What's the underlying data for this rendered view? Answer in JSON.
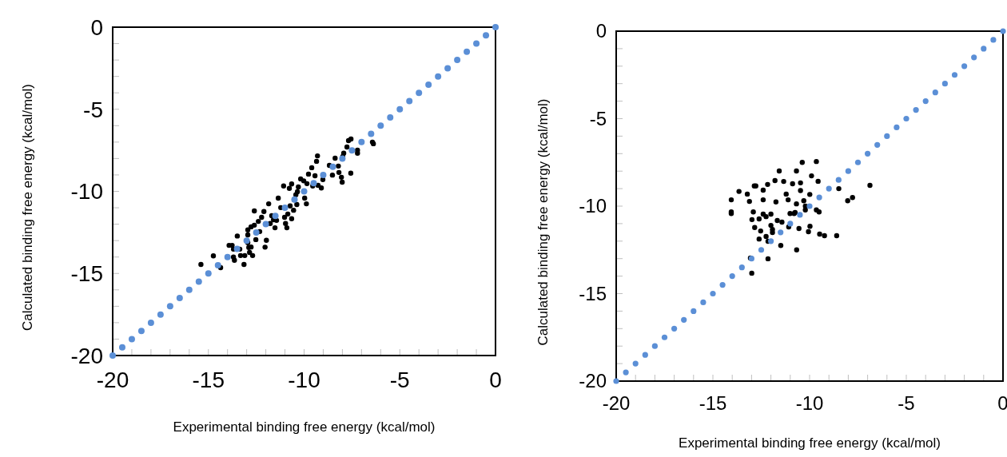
{
  "chart_data": [
    {
      "type": "scatter",
      "xlabel": "Experimental binding free energy (kcal/mol)",
      "ylabel": "Calculated binding free energy (kcal/mol)",
      "xlim": [
        -20,
        0
      ],
      "ylim": [
        -20,
        0
      ],
      "xticks": [
        -20,
        {
          "value": -19,
          "label": null
        },
        {
          "value": -18,
          "label": null
        },
        {
          "value": -17,
          "label": null
        },
        {
          "value": -16,
          "label": null
        },
        -15,
        {
          "value": -14,
          "label": null
        },
        {
          "value": -13,
          "label": null
        },
        {
          "value": -12,
          "label": null
        },
        {
          "value": -11,
          "label": null
        },
        -10,
        {
          "value": -9,
          "label": null
        },
        {
          "value": -8,
          "label": null
        },
        {
          "value": -7,
          "label": null
        },
        {
          "value": -6,
          "label": null
        },
        -5,
        {
          "value": -4,
          "label": null
        },
        {
          "value": -3,
          "label": null
        },
        {
          "value": -2,
          "label": null
        },
        {
          "value": -1,
          "label": null
        },
        0
      ],
      "yticks": [
        -20,
        {
          "value": -19,
          "label": null
        },
        {
          "value": -18,
          "label": null
        },
        {
          "value": -17,
          "label": null
        },
        {
          "value": -16,
          "label": null
        },
        -15,
        {
          "value": -14,
          "label": null
        },
        {
          "value": -13,
          "label": null
        },
        {
          "value": -12,
          "label": null
        },
        {
          "value": -11,
          "label": null
        },
        -10,
        {
          "value": -9,
          "label": null
        },
        {
          "value": -8,
          "label": null
        },
        {
          "value": -7,
          "label": null
        },
        {
          "value": -6,
          "label": null
        },
        -5,
        {
          "value": -4,
          "label": null
        },
        {
          "value": -3,
          "label": null
        },
        {
          "value": -2,
          "label": null
        },
        {
          "value": -1,
          "label": null
        },
        0
      ],
      "grid": false,
      "marker": "circle",
      "series": [
        {
          "color": "#000000",
          "x": [
            -15.39,
            -14.74,
            -14.36,
            -13.92,
            -13.76,
            -13.69,
            -13.69,
            -13.64,
            -13.49,
            -13.36,
            -13.32,
            -13.14,
            -13.1,
            -12.94,
            -12.94,
            -12.94,
            -12.89,
            -12.85,
            -12.77,
            -12.77,
            -12.69,
            -12.6,
            -12.6,
            -12.52,
            -12.39,
            -12.32,
            -12.22,
            -12.1,
            -12.04,
            -11.97,
            -11.85,
            -11.77,
            -11.69,
            -11.6,
            -11.52,
            -11.44,
            -11.35,
            -11.22,
            -11.07,
            -11.02,
            -10.97,
            -10.9,
            -10.85,
            -10.77,
            -10.73,
            -10.65,
            -10.65,
            -10.55,
            -10.52,
            -10.43,
            -10.38,
            -10.35,
            -10.3,
            -10.18,
            -10.02,
            -9.97,
            -9.88,
            -9.85,
            -9.77,
            -9.6,
            -9.55,
            -9.43,
            -9.35,
            -9.3,
            -9.27,
            -9.1,
            -9.02,
            -8.68,
            -8.52,
            -8.38,
            -8.21,
            -8.18,
            -8.05,
            -8.01,
            -7.98,
            -7.93,
            -7.76,
            -7.68,
            -7.55,
            -7.56,
            -7.21,
            -7.21,
            -6.43,
            -6.38
          ],
          "values": [
            -14.45,
            -13.93,
            -14.65,
            -13.29,
            -13.29,
            -13.52,
            -14.0,
            -14.2,
            -12.72,
            -13.52,
            -13.91,
            -14.45,
            -13.91,
            -12.35,
            -12.65,
            -13.13,
            -13.42,
            -13.72,
            -12.16,
            -13.39,
            -13.91,
            -12.06,
            -11.19,
            -12.94,
            -11.83,
            -12.45,
            -11.58,
            -11.23,
            -13.4,
            -12.98,
            -10.76,
            -11.96,
            -11.48,
            -11.73,
            -12.22,
            -11.77,
            -10.41,
            -10.99,
            -9.67,
            -11.58,
            -11.96,
            -12.22,
            -11.38,
            -9.82,
            -10.89,
            -9.55,
            -11.67,
            -11.15,
            -10.51,
            -10.21,
            -10.8,
            -10.02,
            -9.73,
            -9.24,
            -9.36,
            -10.41,
            -10.76,
            -9.53,
            -8.95,
            -8.56,
            -9.67,
            -9.05,
            -8.17,
            -7.84,
            -9.63,
            -9.79,
            -9.28,
            -8.42,
            -9.01,
            -7.98,
            -8.46,
            -8.85,
            -9.14,
            -9.44,
            -7.88,
            -7.68,
            -7.3,
            -6.91,
            -6.81,
            -8.89,
            -7.49,
            -7.68,
            -7.0,
            -7.1
          ]
        },
        {
          "color": "#5b8fd6",
          "x": [
            -20,
            -19.5,
            -19,
            -18.5,
            -18,
            -17.5,
            -17,
            -16.5,
            -16,
            -15.5,
            -15,
            -14.5,
            -14,
            -13.5,
            -13,
            -12.5,
            -12,
            -11.5,
            -11,
            -10.5,
            -10,
            -9.5,
            -9,
            -8.5,
            -8,
            -7.5,
            -7,
            -6.5,
            -6,
            -5.5,
            -5,
            -4.5,
            -4,
            -3.5,
            -3,
            -2.5,
            -2,
            -1.5,
            -1,
            -0.5,
            0
          ],
          "values": [
            -20,
            -19.5,
            -19,
            -18.5,
            -18,
            -17.5,
            -17,
            -16.5,
            -16,
            -15.5,
            -15,
            -14.5,
            -14,
            -13.5,
            -13,
            -12.5,
            -12,
            -11.5,
            -11,
            -10.5,
            -10,
            -9.5,
            -9,
            -8.5,
            -8,
            -7.5,
            -7,
            -6.5,
            -6,
            -5.5,
            -5,
            -4.5,
            -4,
            -3.5,
            -3,
            -2.5,
            -2,
            -1.5,
            -1,
            -0.5,
            0
          ]
        }
      ]
    },
    {
      "type": "scatter",
      "xlabel": "Experimental binding free energy (kcal/mol)",
      "ylabel": "Calculated binding free energy (kcal/mol)",
      "xlim": [
        -20,
        0
      ],
      "ylim": [
        -20,
        0
      ],
      "xticks": [
        -20,
        {
          "value": -19,
          "label": null
        },
        {
          "value": -18,
          "label": null
        },
        {
          "value": -17,
          "label": null
        },
        {
          "value": -16,
          "label": null
        },
        -15,
        {
          "value": -14,
          "label": null
        },
        {
          "value": -13,
          "label": null
        },
        {
          "value": -12,
          "label": null
        },
        {
          "value": -11,
          "label": null
        },
        -10,
        {
          "value": -9,
          "label": null
        },
        {
          "value": -8,
          "label": null
        },
        {
          "value": -7,
          "label": null
        },
        {
          "value": -6,
          "label": null
        },
        -5,
        {
          "value": -4,
          "label": null
        },
        {
          "value": -3,
          "label": null
        },
        {
          "value": -2,
          "label": null
        },
        {
          "value": -1,
          "label": null
        },
        0
      ],
      "yticks": [
        -20,
        {
          "value": -19,
          "label": null
        },
        {
          "value": -18,
          "label": null
        },
        {
          "value": -17,
          "label": null
        },
        {
          "value": -16,
          "label": null
        },
        -15,
        {
          "value": -14,
          "label": null
        },
        {
          "value": -13,
          "label": null
        },
        {
          "value": -12,
          "label": null
        },
        {
          "value": -11,
          "label": null
        },
        -10,
        {
          "value": -9,
          "label": null
        },
        {
          "value": -8,
          "label": null
        },
        {
          "value": -7,
          "label": null
        },
        {
          "value": -6,
          "label": null
        },
        -5,
        {
          "value": -4,
          "label": null
        },
        {
          "value": -3,
          "label": null
        },
        {
          "value": -2,
          "label": null
        },
        {
          "value": -1,
          "label": null
        },
        0
      ],
      "grid": false,
      "marker": "circle",
      "series": [
        {
          "color": "#000000",
          "x": [
            -14.05,
            -14.05,
            -14.05,
            -13.65,
            -13.22,
            -13.11,
            -13.06,
            -12.99,
            -12.98,
            -12.91,
            -12.86,
            -12.78,
            -12.84,
            -12.61,
            -12.61,
            -12.53,
            -12.4,
            -12.4,
            -12.4,
            -12.25,
            -12.25,
            -12.17,
            -12.15,
            -12.15,
            -12.0,
            -12.0,
            -11.92,
            -11.92,
            -11.79,
            -11.74,
            -11.67,
            -11.57,
            -11.49,
            -11.43,
            -11.34,
            -11.21,
            -11.11,
            -11.08,
            -11.01,
            -10.88,
            -10.8,
            -10.75,
            -10.68,
            -10.68,
            -10.67,
            -10.55,
            -10.47,
            -10.47,
            -10.38,
            -10.3,
            -10.22,
            -10.22,
            -10.06,
            -9.99,
            -9.98,
            -9.9,
            -9.65,
            -9.65,
            -9.56,
            -9.51,
            -9.48,
            -9.23,
            -8.6,
            -8.49,
            -8.03,
            -7.78,
            -6.88
          ],
          "values": [
            -9.64,
            -10.33,
            -10.42,
            -9.16,
            -9.31,
            -9.73,
            -12.97,
            -13.83,
            -10.77,
            -10.33,
            -8.85,
            -8.85,
            -11.22,
            -10.73,
            -11.88,
            -11.42,
            -9.09,
            -9.64,
            -10.46,
            -10.6,
            -11.73,
            -8.76,
            -13.01,
            -12.01,
            -10.46,
            -11.1,
            -11.33,
            -11.51,
            -8.54,
            -9.76,
            -10.82,
            -7.99,
            -12.25,
            -10.91,
            -8.59,
            -9.31,
            -9.64,
            -11.19,
            -10.42,
            -8.72,
            -10.42,
            -10.36,
            -7.99,
            -9.87,
            -12.5,
            -11.28,
            -8.67,
            -9.11,
            -7.5,
            -9.69,
            -10.0,
            -10.22,
            -11.46,
            -9.33,
            -11.15,
            -8.27,
            -7.45,
            -10.22,
            -8.58,
            -10.33,
            -11.6,
            -11.69,
            -11.69,
            -9.0,
            -9.69,
            -9.51,
            -8.81
          ]
        },
        {
          "color": "#5b8fd6",
          "x": [
            -20,
            -19.5,
            -19,
            -18.5,
            -18,
            -17.5,
            -17,
            -16.5,
            -16,
            -15.5,
            -15,
            -14.5,
            -14,
            -13.5,
            -13,
            -12.5,
            -12,
            -11.5,
            -11,
            -10.5,
            -10,
            -9.5,
            -9,
            -8.5,
            -8,
            -7.5,
            -7,
            -6.5,
            -6,
            -5.5,
            -5,
            -4.5,
            -4,
            -3.5,
            -3,
            -2.5,
            -2,
            -1.5,
            -1,
            -0.5,
            0
          ],
          "values": [
            -20,
            -19.5,
            -19,
            -18.5,
            -18,
            -17.5,
            -17,
            -16.5,
            -16,
            -15.5,
            -15,
            -14.5,
            -14,
            -13.5,
            -13,
            -12.5,
            -12,
            -11.5,
            -11,
            -10.5,
            -10,
            -9.5,
            -9,
            -8.5,
            -8,
            -7.5,
            -7,
            -6.5,
            -6,
            -5.5,
            -5,
            -4.5,
            -4,
            -3.5,
            -3,
            -2.5,
            -2,
            -1.5,
            -1,
            -0.5,
            0
          ]
        }
      ]
    }
  ]
}
